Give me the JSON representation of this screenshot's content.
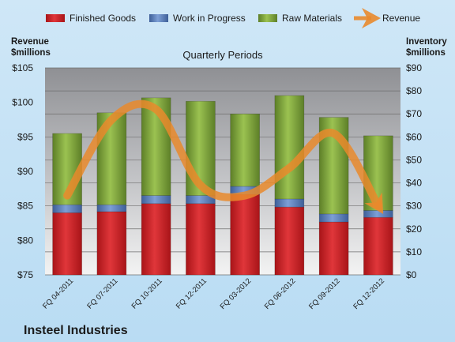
{
  "chart_data": {
    "type": "bar",
    "subtitle": "Quarterly Periods",
    "company": "Insteel Industries",
    "categories": [
      "FQ 04-2011",
      "FQ 07-2011",
      "FQ 10-2011",
      "FQ 12-2011",
      "FQ 03-2012",
      "FQ 06-2012",
      "FQ 09-2012",
      "FQ 12-2012"
    ],
    "series": [
      {
        "name": "Finished Goods",
        "axis": "right",
        "color": "#d9262a",
        "values": [
          27,
          27.5,
          31,
          31,
          35,
          29.5,
          23,
          25
        ]
      },
      {
        "name": "Work in Progress",
        "axis": "right",
        "color": "#5b7fbc",
        "values": [
          3.5,
          3,
          3.5,
          3.5,
          3.5,
          3.5,
          3.5,
          3
        ]
      },
      {
        "name": "Raw Materials",
        "axis": "right",
        "color": "#7fa53a",
        "values": [
          31,
          40,
          42.5,
          41,
          31.5,
          45,
          42,
          32.5
        ]
      },
      {
        "name": "Revenue",
        "axis": "left",
        "color": "#e98a2c",
        "type": "line",
        "values": [
          86.5,
          97.5,
          99,
          88,
          86.5,
          90.5,
          95.5,
          85
        ]
      }
    ],
    "left_axis": {
      "title_line1": "Revenue",
      "title_line2": "$millions",
      "ylim": [
        75,
        105
      ],
      "tick_labels": [
        "$75",
        "$80",
        "$85",
        "$90",
        "$95",
        "$100",
        "$105"
      ]
    },
    "right_axis": {
      "title_line1": "Inventory",
      "title_line2": "$millions",
      "ylim": [
        0,
        90
      ],
      "tick_labels": [
        "$0",
        "$10",
        "$20",
        "$30",
        "$40",
        "$50",
        "$60",
        "$70",
        "$80",
        "$90"
      ]
    },
    "grid": true,
    "legend_position": "top"
  }
}
